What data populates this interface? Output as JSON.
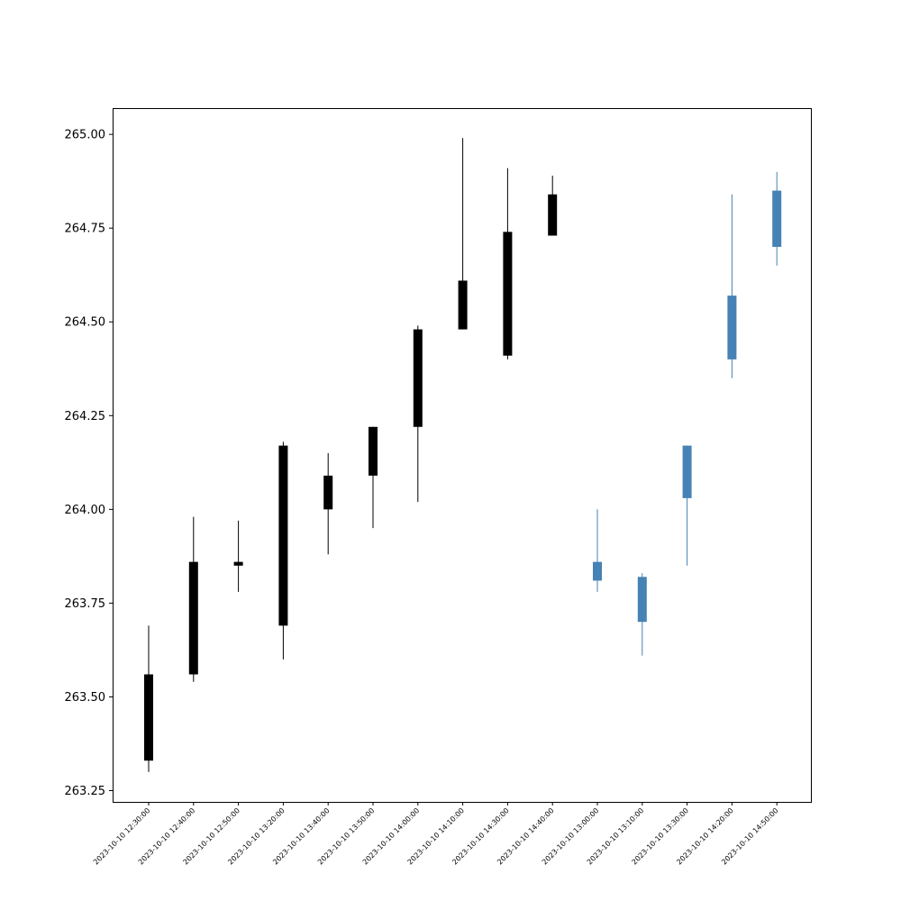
{
  "chart_data": {
    "type": "candlestick",
    "title": "",
    "xlabel": "",
    "ylabel": "",
    "ylim": [
      263.22,
      265.07
    ],
    "y_ticks": [
      "263.25",
      "263.50",
      "263.75",
      "264.00",
      "264.25",
      "264.50",
      "264.75",
      "265.00"
    ],
    "grid": false,
    "legend": "none",
    "colors": {
      "dark": "#000000",
      "blue": "#4682b4"
    },
    "categories": [
      "2023-10-10 12:30:00",
      "2023-10-10 12:40:00",
      "2023-10-10 12:50:00",
      "2023-10-10 13:20:00",
      "2023-10-10 13:40:00",
      "2023-10-10 13:50:00",
      "2023-10-10 14:00:00",
      "2023-10-10 14:10:00",
      "2023-10-10 14:30:00",
      "2023-10-10 14:40:00",
      "2023-10-10 13:00:00",
      "2023-10-10 13:10:00",
      "2023-10-10 13:30:00",
      "2023-10-10 14:20:00",
      "2023-10-10 14:50:00"
    ],
    "candles": [
      {
        "low": 263.3,
        "high": 263.69,
        "body_low": 263.33,
        "body_high": 263.56,
        "color": "dark"
      },
      {
        "low": 263.54,
        "high": 263.98,
        "body_low": 263.56,
        "body_high": 263.86,
        "color": "dark"
      },
      {
        "low": 263.78,
        "high": 263.97,
        "body_low": 263.85,
        "body_high": 263.86,
        "color": "dark"
      },
      {
        "low": 263.6,
        "high": 264.18,
        "body_low": 263.69,
        "body_high": 264.17,
        "color": "dark"
      },
      {
        "low": 263.88,
        "high": 264.15,
        "body_low": 264.0,
        "body_high": 264.09,
        "color": "dark"
      },
      {
        "low": 263.95,
        "high": 264.22,
        "body_low": 264.09,
        "body_high": 264.22,
        "color": "dark"
      },
      {
        "low": 264.02,
        "high": 264.49,
        "body_low": 264.22,
        "body_high": 264.48,
        "color": "dark"
      },
      {
        "low": 264.48,
        "high": 264.99,
        "body_low": 264.48,
        "body_high": 264.61,
        "color": "dark"
      },
      {
        "low": 264.4,
        "high": 264.91,
        "body_low": 264.41,
        "body_high": 264.74,
        "color": "dark"
      },
      {
        "low": 264.73,
        "high": 264.89,
        "body_low": 264.73,
        "body_high": 264.84,
        "color": "dark"
      },
      {
        "low": 263.78,
        "high": 264.0,
        "body_low": 263.81,
        "body_high": 263.86,
        "color": "blue"
      },
      {
        "low": 263.61,
        "high": 263.83,
        "body_low": 263.7,
        "body_high": 263.82,
        "color": "blue"
      },
      {
        "low": 263.85,
        "high": 264.17,
        "body_low": 264.03,
        "body_high": 264.17,
        "color": "blue"
      },
      {
        "low": 264.35,
        "high": 264.84,
        "body_low": 264.4,
        "body_high": 264.57,
        "color": "blue"
      },
      {
        "low": 264.65,
        "high": 264.9,
        "body_low": 264.7,
        "body_high": 264.85,
        "color": "blue"
      }
    ]
  }
}
